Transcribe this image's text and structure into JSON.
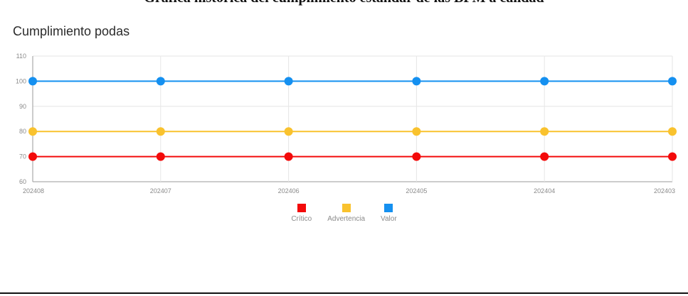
{
  "header": {
    "clipped_title": "Gráfica historica del cumplimiento estándar de las BPM a calidad"
  },
  "chart_data": {
    "type": "line",
    "title": "Cumplimiento podas",
    "x": [
      "202408",
      "202407",
      "202406",
      "202405",
      "202404",
      "202403"
    ],
    "ylim": [
      60,
      110
    ],
    "yticks": [
      60,
      70,
      80,
      90,
      100,
      110
    ],
    "grid": true,
    "legend_position": "bottom",
    "series": [
      {
        "name": "Crítico",
        "color": "#f30a0a",
        "values": [
          70,
          70,
          70,
          70,
          70,
          70
        ]
      },
      {
        "name": "Advertencia",
        "color": "#f9c22e",
        "values": [
          80,
          80,
          80,
          80,
          80,
          80
        ]
      },
      {
        "name": "Valor",
        "color": "#1590f0",
        "values": [
          100,
          100,
          100,
          100,
          100,
          100
        ]
      }
    ]
  }
}
